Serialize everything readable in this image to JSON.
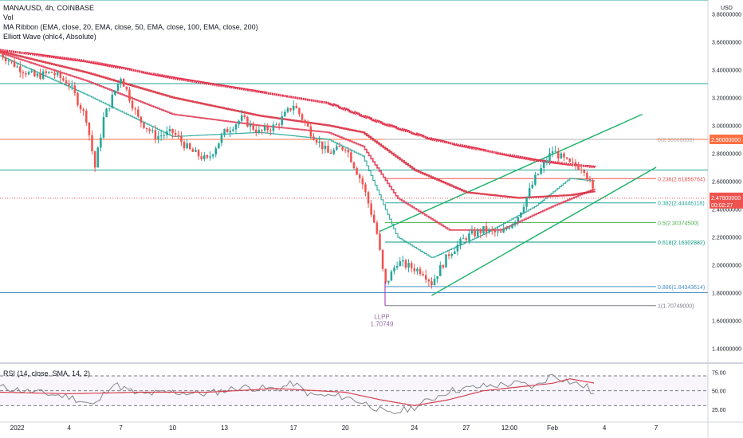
{
  "header": {
    "title": "MANA/USD, 4h, COINBASE",
    "indicator_vol": "Vol",
    "indicator_ma": "MA Ribbon (EMA, close, 20, EMA, close, 50, EMA, close, 100, EMA, close, 200)",
    "indicator_ew": "Elliott Wave (ohlc4, Absolute)",
    "rsi_legend": "RSI (14, close, SMA, 14, 2)"
  },
  "colors": {
    "up": "#26a69a",
    "down": "#ef5350",
    "ema20": "#26a69a",
    "ema50": "#e0405a",
    "ema100": "#d83040",
    "ema200": "#e01e3c",
    "channel": "#21b36a",
    "price_tag": "#ef5350",
    "resistance_tag": "#ff7043",
    "rsi_line": "#888888",
    "rsi_sma": "#d84050"
  },
  "chart_data": {
    "type": "candlestick",
    "symbol": "MANA/USD",
    "timeframe": "4h",
    "exchange": "COINBASE",
    "currency_label": "USD",
    "ylim": [
      1.3,
      3.9
    ],
    "y_ticks": [
      "3.80000000",
      "3.60000000",
      "3.40000000",
      "3.20000000",
      "3.00000000",
      "2.80000000",
      "2.60000000",
      "2.40000000",
      "2.20000000",
      "2.00000000",
      "1.80000000",
      "1.60000000",
      "1.40000000"
    ],
    "x_ticks": [
      "2022",
      "4",
      "7",
      "10",
      "13",
      "17",
      "20",
      "24",
      "27",
      "12:00",
      "Feb",
      "4",
      "7"
    ],
    "x_tick_positions_day": [
      1,
      4,
      7,
      10,
      13,
      17,
      20,
      24,
      27,
      29.5,
      32,
      35,
      38
    ],
    "x_axis_start_day": 0,
    "x_axis_end_day": 41,
    "price_path": [
      [
        0,
        3.52
      ],
      [
        1,
        3.42
      ],
      [
        2,
        3.35
      ],
      [
        3,
        3.38
      ],
      [
        4,
        3.3
      ],
      [
        5,
        3.05
      ],
      [
        5.5,
        2.7
      ],
      [
        6,
        3.05
      ],
      [
        7,
        3.35
      ],
      [
        8,
        3.05
      ],
      [
        9,
        2.92
      ],
      [
        10,
        2.95
      ],
      [
        11,
        2.82
      ],
      [
        12,
        2.75
      ],
      [
        13,
        2.95
      ],
      [
        14,
        3.05
      ],
      [
        15,
        2.95
      ],
      [
        16,
        3.0
      ],
      [
        17,
        3.15
      ],
      [
        18,
        2.95
      ],
      [
        19,
        2.8
      ],
      [
        20,
        2.85
      ],
      [
        21,
        2.58
      ],
      [
        21.8,
        2.25
      ],
      [
        22.3,
        1.85
      ],
      [
        23,
        2.02
      ],
      [
        24.5,
        1.95
      ],
      [
        25,
        1.87
      ],
      [
        26,
        2.08
      ],
      [
        27,
        2.2
      ],
      [
        28,
        2.25
      ],
      [
        29,
        2.22
      ],
      [
        30,
        2.35
      ],
      [
        31,
        2.62
      ],
      [
        32,
        2.82
      ],
      [
        33,
        2.72
      ],
      [
        33.8,
        2.7
      ],
      [
        34.5,
        2.48
      ]
    ],
    "current_price": "2.47800000",
    "countdown": "00:02:27",
    "series": [
      {
        "name": "EMA 20",
        "values": [
          [
            0,
            3.5
          ],
          [
            5,
            3.22
          ],
          [
            10,
            2.92
          ],
          [
            15,
            2.95
          ],
          [
            19,
            2.9
          ],
          [
            21,
            2.78
          ],
          [
            23,
            2.2
          ],
          [
            25,
            2.05
          ],
          [
            28,
            2.22
          ],
          [
            31,
            2.42
          ],
          [
            33,
            2.62
          ],
          [
            34.5,
            2.6
          ]
        ]
      },
      {
        "name": "EMA 50",
        "values": [
          [
            0,
            3.52
          ],
          [
            5,
            3.32
          ],
          [
            10,
            3.08
          ],
          [
            15,
            3.0
          ],
          [
            19,
            2.95
          ],
          [
            21,
            2.85
          ],
          [
            23,
            2.48
          ],
          [
            26,
            2.25
          ],
          [
            29,
            2.25
          ],
          [
            32,
            2.42
          ],
          [
            34.5,
            2.55
          ]
        ]
      },
      {
        "name": "EMA 100",
        "values": [
          [
            0,
            3.53
          ],
          [
            5,
            3.38
          ],
          [
            10,
            3.2
          ],
          [
            15,
            3.07
          ],
          [
            19,
            3.0
          ],
          [
            21,
            2.95
          ],
          [
            24,
            2.68
          ],
          [
            27,
            2.52
          ],
          [
            30,
            2.48
          ],
          [
            33,
            2.5
          ],
          [
            34.5,
            2.53
          ]
        ]
      },
      {
        "name": "EMA 200",
        "values": [
          [
            0,
            3.54
          ],
          [
            5,
            3.46
          ],
          [
            10,
            3.34
          ],
          [
            15,
            3.24
          ],
          [
            19,
            3.16
          ],
          [
            22,
            3.02
          ],
          [
            25,
            2.9
          ],
          [
            28,
            2.82
          ],
          [
            31,
            2.75
          ],
          [
            33,
            2.72
          ],
          [
            34.5,
            2.7
          ]
        ]
      }
    ],
    "horizontal_lines": [
      {
        "price": 3.9,
        "color": "#26a69a"
      },
      {
        "price": 3.3,
        "color": "#26a69a"
      },
      {
        "price": 2.9,
        "color": "#ff7043",
        "tag": "2.90000000"
      },
      {
        "price": 2.68,
        "color": "#26a69a"
      },
      {
        "price": 1.8,
        "color": "#4a90c8"
      }
    ],
    "fibonacci": {
      "start_day": 22.3,
      "end_day": 38.0,
      "levels": [
        {
          "label": "0(2.90000000)",
          "price": 2.9,
          "color": "#b0b0b0"
        },
        {
          "label": "0.236(2.61856764)",
          "price": 2.61856764,
          "color": "#ef5350"
        },
        {
          "label": "0.382(2.44446118)",
          "price": 2.44446118,
          "color": "#26a69a"
        },
        {
          "label": "0.5(2.30374500)",
          "price": 2.303745,
          "color": "#4caf50"
        },
        {
          "label": "0.618(2.16302882)",
          "price": 2.16302882,
          "color": "#089981"
        },
        {
          "label": "0.886(1.84343614)",
          "price": 1.84343614,
          "color": "#4a90c8"
        },
        {
          "label": "1(1.70749000)",
          "price": 1.70749,
          "color": "#787b86"
        }
      ]
    },
    "channel": [
      {
        "from": [
          22.0,
          2.24
        ],
        "to": [
          37.2,
          3.08
        ]
      },
      {
        "from": [
          25.0,
          1.78
        ],
        "to": [
          38.0,
          2.7
        ]
      }
    ],
    "annotation": {
      "title": "LLPP",
      "value": "1.70749",
      "day": 22.3,
      "price": 1.70749
    },
    "rsi": {
      "ylim": [
        10,
        85
      ],
      "levels": [
        70,
        50,
        30
      ],
      "ticks": [
        "75.00",
        "50.00",
        "25.00"
      ],
      "values": [
        [
          0,
          55
        ],
        [
          2,
          48
        ],
        [
          4,
          42
        ],
        [
          5.5,
          30
        ],
        [
          6.5,
          60
        ],
        [
          8,
          45
        ],
        [
          10,
          48
        ],
        [
          12,
          46
        ],
        [
          14,
          55
        ],
        [
          16,
          52
        ],
        [
          17,
          60
        ],
        [
          18,
          44
        ],
        [
          20,
          42
        ],
        [
          21.5,
          30
        ],
        [
          22.5,
          18
        ],
        [
          24,
          28
        ],
        [
          26,
          50
        ],
        [
          28,
          56
        ],
        [
          30,
          60
        ],
        [
          31,
          55
        ],
        [
          32,
          72
        ],
        [
          33,
          62
        ],
        [
          34,
          55
        ],
        [
          34.5,
          42
        ]
      ],
      "sma": [
        [
          0,
          48
        ],
        [
          4,
          46
        ],
        [
          8,
          48
        ],
        [
          12,
          48
        ],
        [
          16,
          53
        ],
        [
          20,
          48
        ],
        [
          22,
          38
        ],
        [
          24,
          30
        ],
        [
          26,
          38
        ],
        [
          28,
          50
        ],
        [
          30,
          55
        ],
        [
          32,
          60
        ],
        [
          33,
          66
        ],
        [
          34.5,
          60
        ]
      ]
    }
  }
}
